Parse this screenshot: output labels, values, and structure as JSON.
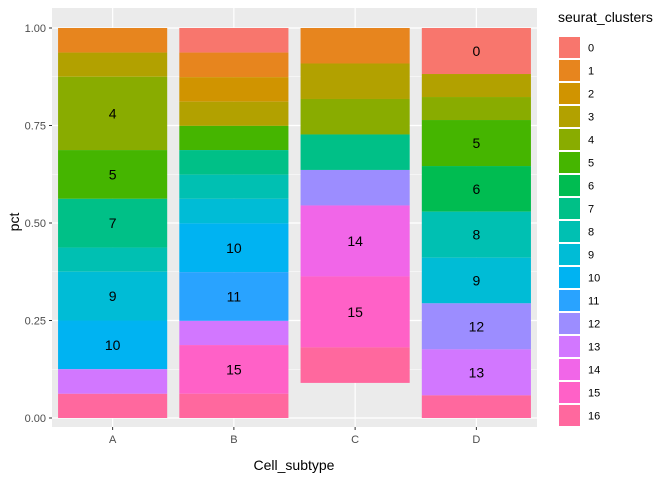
{
  "chart_data": {
    "type": "bar",
    "stacked": true,
    "xlabel": "Cell_subtype",
    "ylabel": "pct",
    "ylim": [
      0,
      1
    ],
    "yticks": [
      "0.00",
      "0.25",
      "0.50",
      "0.75",
      "1.00"
    ],
    "grid": true,
    "legend_position": "right",
    "categories": [
      "A",
      "B",
      "C",
      "D"
    ],
    "series": [
      {
        "name": "0",
        "color": "#F8766D",
        "values": [
          0.0,
          0.063,
          0.0,
          0.118
        ]
      },
      {
        "name": "1",
        "color": "#E7851E",
        "values": [
          0.063,
          0.063,
          0.091,
          0.0
        ]
      },
      {
        "name": "2",
        "color": "#D09400",
        "values": [
          0.0,
          0.063,
          0.0,
          0.0
        ]
      },
      {
        "name": "3",
        "color": "#B2A100",
        "values": [
          0.062,
          0.062,
          0.091,
          0.059
        ]
      },
      {
        "name": "4",
        "color": "#89AC00",
        "values": [
          0.188,
          0.0,
          0.091,
          0.059
        ]
      },
      {
        "name": "5",
        "color": "#45B500",
        "values": [
          0.125,
          0.062,
          0.0,
          0.118
        ]
      },
      {
        "name": "6",
        "color": "#00BC51",
        "values": [
          0.0,
          0.0,
          0.0,
          0.117
        ]
      },
      {
        "name": "7",
        "color": "#00C087",
        "values": [
          0.125,
          0.063,
          0.091,
          0.0
        ]
      },
      {
        "name": "8",
        "color": "#00C0B2",
        "values": [
          0.062,
          0.062,
          0.0,
          0.118
        ]
      },
      {
        "name": "9",
        "color": "#00BCD6",
        "values": [
          0.125,
          0.063,
          0.0,
          0.117
        ]
      },
      {
        "name": "10",
        "color": "#00B3F2",
        "values": [
          0.125,
          0.125,
          0.0,
          0.0
        ]
      },
      {
        "name": "11",
        "color": "#29A3FF",
        "values": [
          0.0,
          0.125,
          0.0,
          0.0
        ]
      },
      {
        "name": "12",
        "color": "#9C8DFF",
        "values": [
          0.0,
          0.0,
          0.091,
          0.118
        ]
      },
      {
        "name": "13",
        "color": "#D277FF",
        "values": [
          0.063,
          0.062,
          0.0,
          0.118
        ]
      },
      {
        "name": "14",
        "color": "#F166E8",
        "values": [
          0.0,
          0.0,
          0.182,
          0.0
        ]
      },
      {
        "name": "15",
        "color": "#FF61C7",
        "values": [
          0.0,
          0.125,
          0.182,
          0.0
        ]
      },
      {
        "name": "16",
        "color": "#FF689E",
        "values": [
          0.062,
          0.062,
          0.091,
          0.058
        ]
      }
    ],
    "segment_labels": [
      {
        "category": "A",
        "series": "4"
      },
      {
        "category": "A",
        "series": "5"
      },
      {
        "category": "A",
        "series": "7"
      },
      {
        "category": "A",
        "series": "9"
      },
      {
        "category": "A",
        "series": "10"
      },
      {
        "category": "B",
        "series": "10"
      },
      {
        "category": "B",
        "series": "11"
      },
      {
        "category": "B",
        "series": "15"
      },
      {
        "category": "C",
        "series": "14"
      },
      {
        "category": "C",
        "series": "15"
      },
      {
        "category": "D",
        "series": "0"
      },
      {
        "category": "D",
        "series": "5"
      },
      {
        "category": "D",
        "series": "6"
      },
      {
        "category": "D",
        "series": "8"
      },
      {
        "category": "D",
        "series": "9"
      },
      {
        "category": "D",
        "series": "12"
      },
      {
        "category": "D",
        "series": "13"
      }
    ],
    "legend_title": "seurat_clusters"
  }
}
